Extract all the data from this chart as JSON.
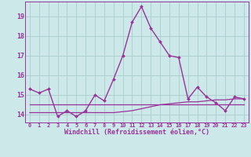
{
  "xlabel": "Windchill (Refroidissement éolien,°C)",
  "bg_color": "#cce8e8",
  "grid_color": "#aacccc",
  "line_color": "#993399",
  "x_hours": [
    0,
    1,
    2,
    3,
    4,
    5,
    6,
    7,
    8,
    9,
    10,
    11,
    12,
    13,
    14,
    15,
    16,
    17,
    18,
    19,
    20,
    21,
    22,
    23
  ],
  "main_series": [
    15.3,
    15.1,
    15.3,
    13.9,
    14.2,
    13.9,
    14.2,
    15.0,
    14.7,
    15.8,
    17.0,
    18.7,
    19.5,
    18.4,
    17.7,
    17.0,
    16.9,
    14.8,
    15.4,
    14.9,
    14.6,
    14.2,
    14.9,
    14.8
  ],
  "flat_line1": [
    14.5,
    14.5,
    14.5,
    14.5,
    14.5,
    14.5,
    14.5,
    14.5,
    14.5,
    14.5,
    14.5,
    14.5,
    14.5,
    14.5,
    14.5,
    14.5,
    14.5,
    14.5,
    14.5,
    14.5,
    14.5,
    14.5,
    14.5,
    14.5
  ],
  "flat_line2": [
    14.1,
    14.1,
    14.1,
    14.1,
    14.1,
    14.1,
    14.1,
    14.1,
    14.1,
    14.1,
    14.15,
    14.2,
    14.3,
    14.4,
    14.5,
    14.55,
    14.6,
    14.65,
    14.65,
    14.7,
    14.75,
    14.75,
    14.8,
    14.8
  ],
  "ylim": [
    13.6,
    19.75
  ],
  "yticks": [
    14,
    15,
    16,
    17,
    18,
    19
  ],
  "xlim": [
    -0.5,
    23.5
  ]
}
